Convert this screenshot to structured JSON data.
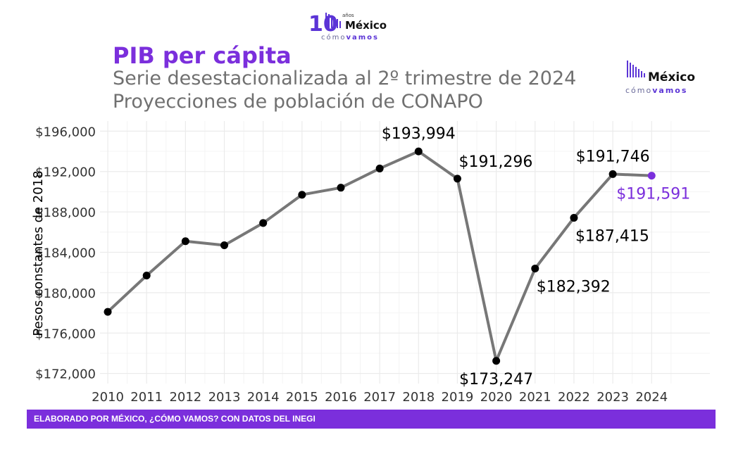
{
  "header": {
    "title": "PIB per cápita",
    "subtitle1": "Serie desestacionalizada al 2º trimestre de 2024",
    "subtitle2": "Proyecciones de población de CONAPO"
  },
  "logo_top": {
    "number": "10",
    "small": "años",
    "word": "México",
    "sub_a": "cómo",
    "sub_b": "vamos"
  },
  "logo_right": {
    "word": "México",
    "sub_a": "cómo",
    "sub_b": "vamos"
  },
  "footer": {
    "text": "ELABORADO POR MÉXICO, ¿CÓMO VAMOS? CON DATOS DEL INEGI"
  },
  "colors": {
    "accent": "#7b2fdc",
    "line": "#777777",
    "point": "#000000",
    "grid": "#ebebeb"
  },
  "chart_data": {
    "type": "line",
    "ylabel": "Pesos constantes de 2018",
    "xlabel": "",
    "x": [
      2010,
      2011,
      2012,
      2013,
      2014,
      2015,
      2016,
      2017,
      2018,
      2019,
      2020,
      2021,
      2022,
      2023,
      2024
    ],
    "values": [
      178100,
      181700,
      185100,
      184700,
      186900,
      189700,
      190400,
      192300,
      193994,
      191296,
      173247,
      182392,
      187415,
      191746,
      191591
    ],
    "ylim": [
      171000,
      197000
    ],
    "xlim": [
      2009.8,
      2025.5
    ],
    "yticks": [
      172000,
      176000,
      180000,
      184000,
      188000,
      192000,
      196000
    ],
    "ytick_labels": [
      "$172,000",
      "$176,000",
      "$180,000",
      "$184,000",
      "$188,000",
      "$192,000",
      "$196,000"
    ],
    "xtick_labels": [
      "2010",
      "2011",
      "2012",
      "2013",
      "2014",
      "2015",
      "2016",
      "2017",
      "2018",
      "2019",
      "2020",
      "2021",
      "2022",
      "2023",
      "2024"
    ],
    "grid": true,
    "annotations": [
      {
        "x": 2018,
        "y": 193994,
        "text": "$193,994",
        "pos": "above",
        "highlight": false
      },
      {
        "x": 2019,
        "y": 191296,
        "text": "$191,296",
        "pos": "above-right",
        "highlight": false
      },
      {
        "x": 2020,
        "y": 173247,
        "text": "$173,247",
        "pos": "below",
        "highlight": false
      },
      {
        "x": 2021,
        "y": 182392,
        "text": "$182,392",
        "pos": "below-right",
        "highlight": false
      },
      {
        "x": 2022,
        "y": 187415,
        "text": "$187,415",
        "pos": "below-right",
        "highlight": false
      },
      {
        "x": 2023,
        "y": 191746,
        "text": "$191,746",
        "pos": "above",
        "highlight": false
      },
      {
        "x": 2024,
        "y": 191591,
        "text": "$191,591",
        "pos": "below",
        "highlight": true
      }
    ]
  }
}
